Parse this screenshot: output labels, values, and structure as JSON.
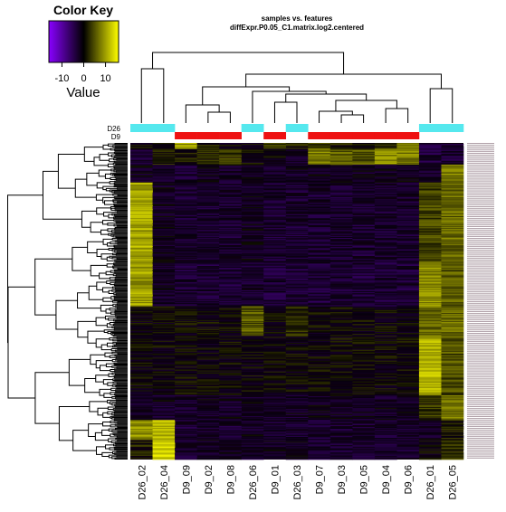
{
  "color_key": {
    "title": "Color Key",
    "value_label": "Value",
    "ticks": [
      "-10",
      "0",
      "10"
    ],
    "tick_values": [
      -10,
      0,
      10
    ],
    "range": [
      -16,
      16
    ],
    "colors": [
      "#8800ff",
      "#000000",
      "#ffff00"
    ]
  },
  "chart_data": {
    "type": "heatmap",
    "title": "samples vs. features",
    "subtitle": "diffExpr.P0.05_C1.matrix.log2.centered",
    "columns": [
      "D26_02",
      "D26_04",
      "D9_09",
      "D9_02",
      "D9_08",
      "D26_06",
      "D9_01",
      "D26_03",
      "D9_07",
      "D9_03",
      "D9_05",
      "D9_04",
      "D9_06",
      "D26_01",
      "D26_05"
    ],
    "side_bar_rows": [
      "D26",
      "D9"
    ],
    "side_bar_colors": {
      "D26": "#55e8ee",
      "D9": "#ee1111"
    },
    "column_groups": [
      "D26",
      "D26",
      "D9",
      "D9",
      "D9",
      "D26",
      "D9",
      "D26",
      "D9",
      "D9",
      "D9",
      "D9",
      "D9",
      "D26",
      "D26"
    ],
    "feature_count": 320,
    "value_scale": "log2 centered expression",
    "palette": [
      "#8800ff",
      "#000000",
      "#ffff00"
    ]
  }
}
